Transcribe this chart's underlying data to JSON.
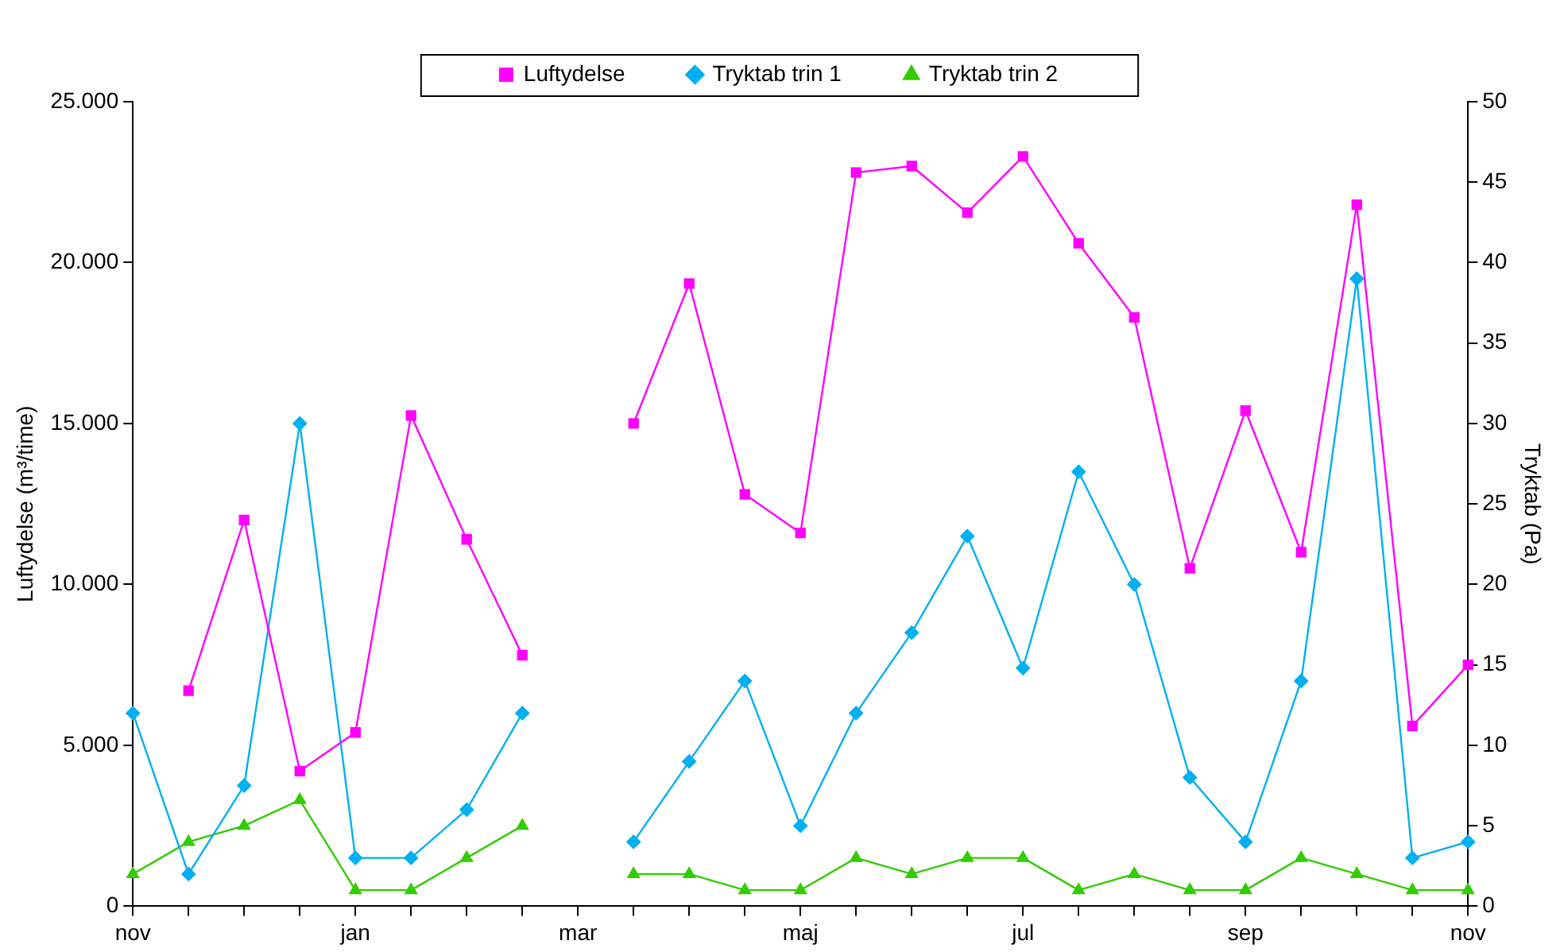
{
  "chart_data": {
    "type": "line",
    "categories": [
      "nov",
      null,
      null,
      null,
      "jan",
      null,
      null,
      null,
      "mar",
      null,
      null,
      null,
      "maj",
      null,
      null,
      null,
      "jul",
      null,
      null,
      null,
      "sep",
      null,
      null,
      null,
      "nov"
    ],
    "ylabel": "Luftydelse (m³/time)",
    "y2label": "Tryktab (Pa)",
    "ylim": [
      0,
      25000
    ],
    "yticks": [
      {
        "value": 0,
        "label": "0"
      },
      {
        "value": 5000,
        "label": "5.000"
      },
      {
        "value": 10000,
        "label": "10.000"
      },
      {
        "value": 15000,
        "label": "15.000"
      },
      {
        "value": 20000,
        "label": "20.000"
      },
      {
        "value": 25000,
        "label": "25.000"
      }
    ],
    "y2lim": [
      0,
      50
    ],
    "y2ticks": [
      0,
      5,
      10,
      15,
      20,
      25,
      30,
      35,
      40,
      45,
      50
    ],
    "grid": false,
    "legend": "top",
    "series": [
      {
        "name": "Luftydelse",
        "color": "#ff00ff",
        "marker": "square",
        "values": [
          null,
          6700,
          12000,
          4200,
          5400,
          15250,
          11400,
          7800,
          null,
          15000,
          19350,
          12800,
          11600,
          22800,
          23000,
          21550,
          23300,
          20600,
          18300,
          10500,
          15400,
          11000,
          21800,
          5600,
          7500
        ]
      },
      {
        "name": "Tryktab trin 1",
        "color": "#00b0f0",
        "marker": "diamond",
        "axis": "y2",
        "values": [
          12,
          2,
          7.5,
          30,
          3,
          3,
          6,
          12,
          null,
          4,
          9,
          14,
          5,
          12,
          17,
          23,
          14.8,
          27,
          20,
          8,
          4,
          14,
          39,
          3,
          4
        ]
      },
      {
        "name": "Tryktab trin 2",
        "color": "#33cc00",
        "marker": "triangle",
        "axis": "y2",
        "values": [
          2,
          4,
          5,
          6.6,
          1,
          1,
          3,
          5,
          null,
          2,
          2,
          1,
          1,
          3,
          2,
          3,
          3,
          1,
          2,
          1,
          1,
          3,
          2,
          1,
          1
        ]
      }
    ]
  }
}
